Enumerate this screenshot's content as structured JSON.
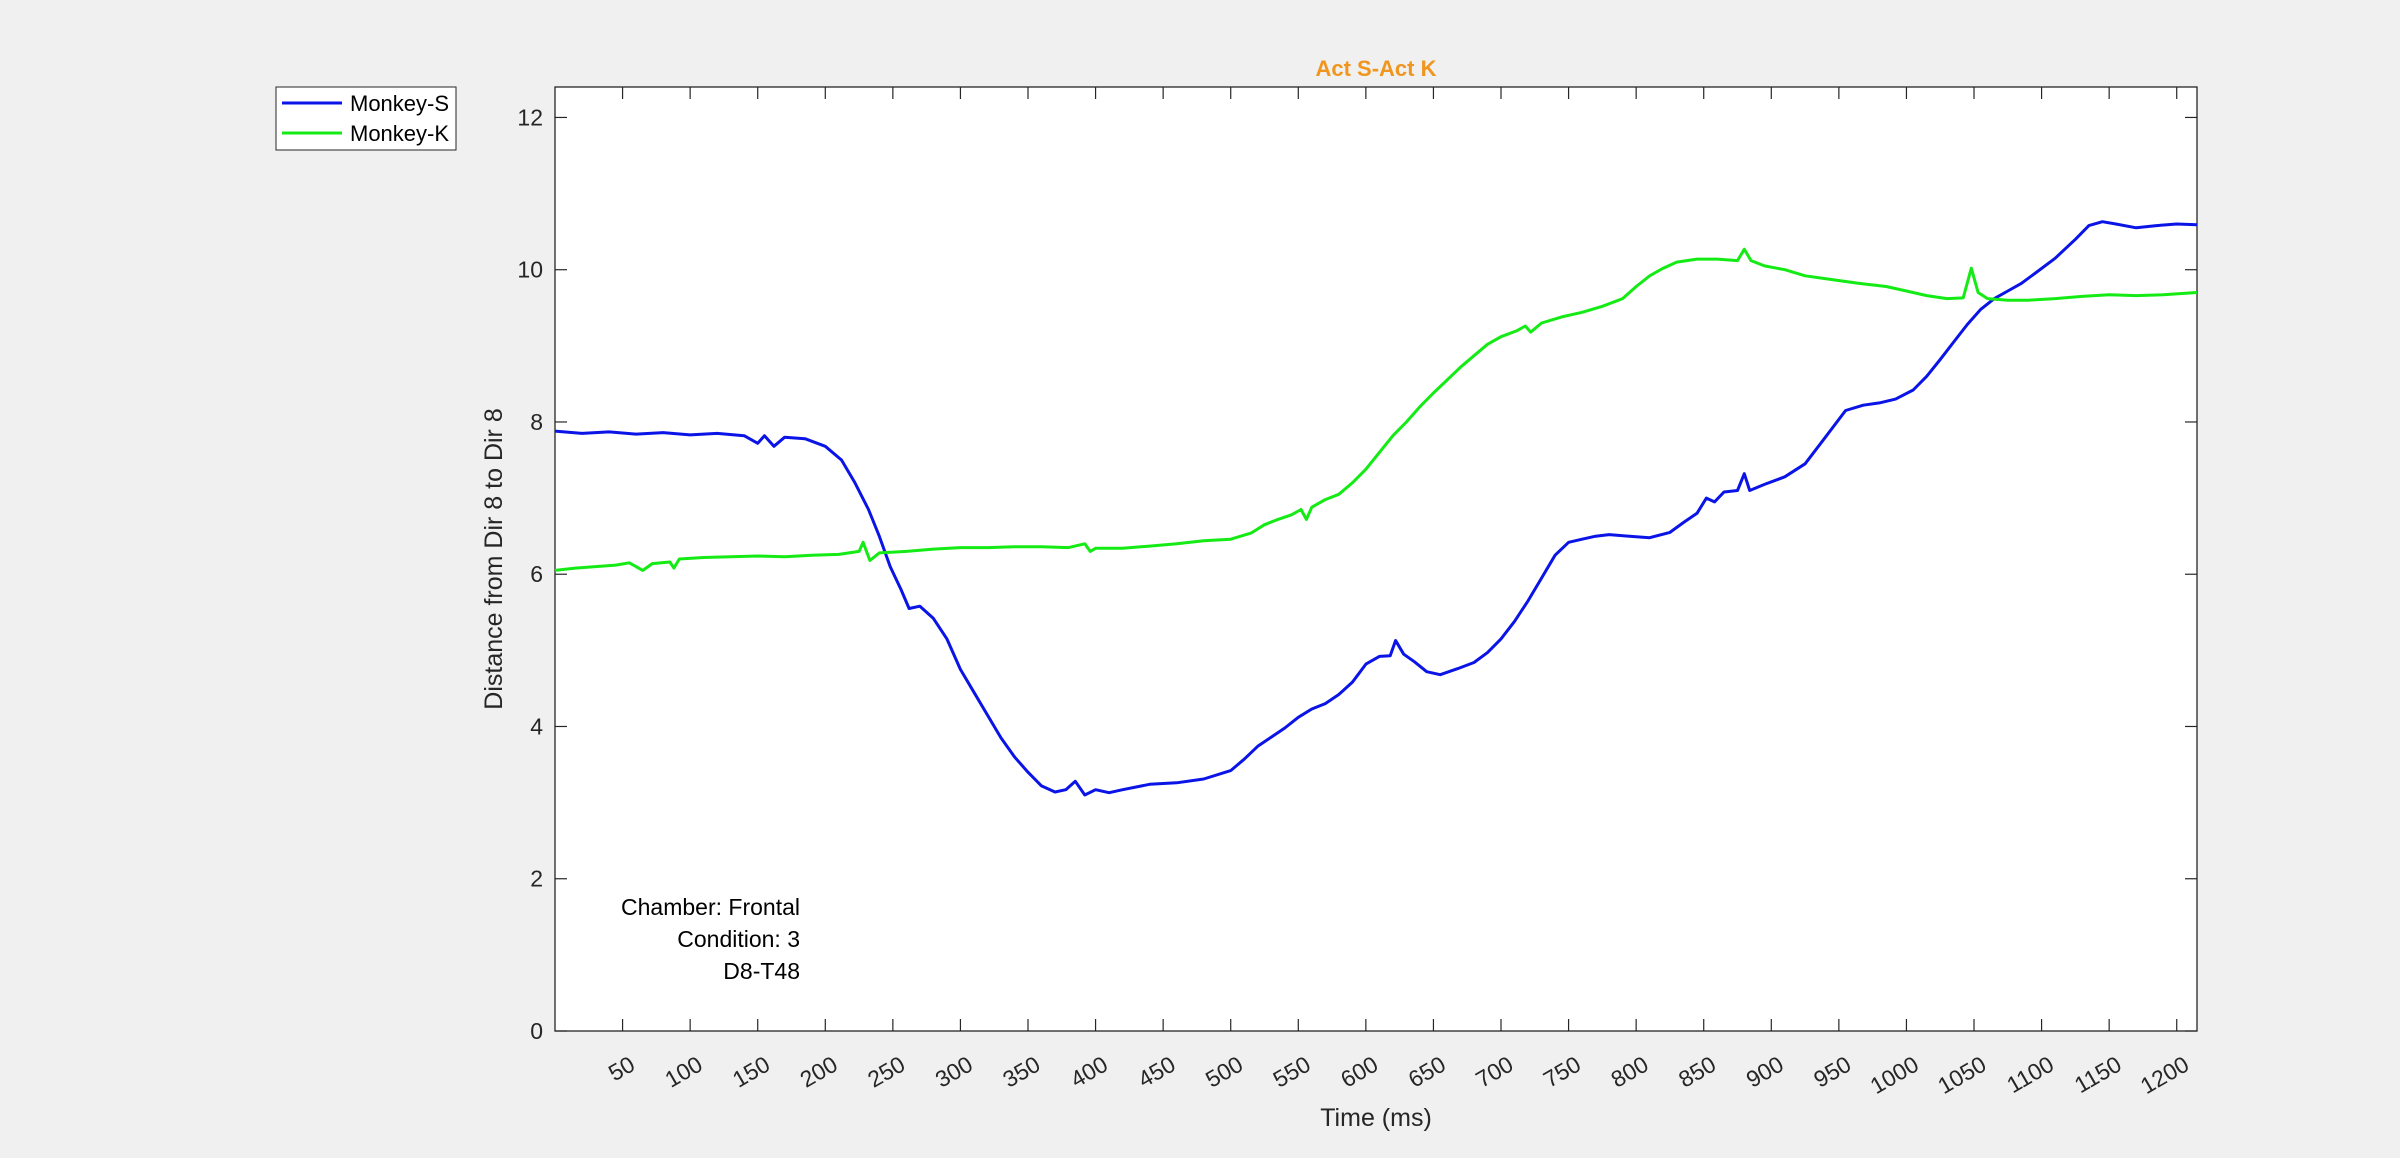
{
  "chart_data": {
    "type": "line",
    "title": "Act S-Act K",
    "title_color": "#f0961e",
    "xlabel": "Time (ms)",
    "ylabel": "Distance from Dir 8 to Dir 8",
    "xlim": [
      0,
      1215
    ],
    "ylim": [
      0,
      12.4
    ],
    "xticks": [
      50,
      100,
      150,
      200,
      250,
      300,
      350,
      400,
      450,
      500,
      550,
      600,
      650,
      700,
      750,
      800,
      850,
      900,
      950,
      1000,
      1050,
      1100,
      1150,
      1200
    ],
    "yticks": [
      0,
      2,
      4,
      6,
      8,
      10,
      12
    ],
    "grid": false,
    "legend_position": "outside-top-left",
    "annotation": [
      "Chamber: Frontal",
      "Condition: 3",
      "D8-T48"
    ],
    "series": [
      {
        "name": "Monkey-S",
        "color": "#0a14e6",
        "points": [
          [
            0,
            7.88
          ],
          [
            20,
            7.85
          ],
          [
            40,
            7.87
          ],
          [
            60,
            7.84
          ],
          [
            80,
            7.86
          ],
          [
            100,
            7.83
          ],
          [
            120,
            7.85
          ],
          [
            140,
            7.82
          ],
          [
            150,
            7.72
          ],
          [
            155,
            7.82
          ],
          [
            162,
            7.68
          ],
          [
            170,
            7.8
          ],
          [
            185,
            7.78
          ],
          [
            200,
            7.68
          ],
          [
            212,
            7.5
          ],
          [
            222,
            7.2
          ],
          [
            232,
            6.85
          ],
          [
            240,
            6.5
          ],
          [
            248,
            6.1
          ],
          [
            256,
            5.8
          ],
          [
            262,
            5.55
          ],
          [
            270,
            5.58
          ],
          [
            280,
            5.42
          ],
          [
            290,
            5.15
          ],
          [
            300,
            4.75
          ],
          [
            310,
            4.45
          ],
          [
            320,
            4.15
          ],
          [
            330,
            3.85
          ],
          [
            340,
            3.6
          ],
          [
            350,
            3.4
          ],
          [
            360,
            3.22
          ],
          [
            370,
            3.14
          ],
          [
            378,
            3.17
          ],
          [
            385,
            3.28
          ],
          [
            392,
            3.1
          ],
          [
            400,
            3.17
          ],
          [
            410,
            3.13
          ],
          [
            420,
            3.17
          ],
          [
            440,
            3.24
          ],
          [
            460,
            3.26
          ],
          [
            480,
            3.31
          ],
          [
            500,
            3.42
          ],
          [
            510,
            3.57
          ],
          [
            520,
            3.74
          ],
          [
            530,
            3.86
          ],
          [
            540,
            3.98
          ],
          [
            550,
            4.12
          ],
          [
            560,
            4.23
          ],
          [
            570,
            4.3
          ],
          [
            580,
            4.42
          ],
          [
            590,
            4.58
          ],
          [
            600,
            4.82
          ],
          [
            610,
            4.92
          ],
          [
            618,
            4.93
          ],
          [
            622,
            5.13
          ],
          [
            628,
            4.95
          ],
          [
            636,
            4.85
          ],
          [
            645,
            4.72
          ],
          [
            655,
            4.68
          ],
          [
            668,
            4.76
          ],
          [
            680,
            4.84
          ],
          [
            690,
            4.97
          ],
          [
            700,
            5.15
          ],
          [
            710,
            5.38
          ],
          [
            720,
            5.65
          ],
          [
            730,
            5.95
          ],
          [
            740,
            6.25
          ],
          [
            750,
            6.42
          ],
          [
            760,
            6.46
          ],
          [
            770,
            6.5
          ],
          [
            780,
            6.52
          ],
          [
            795,
            6.5
          ],
          [
            810,
            6.48
          ],
          [
            825,
            6.55
          ],
          [
            835,
            6.68
          ],
          [
            845,
            6.8
          ],
          [
            852,
            7.0
          ],
          [
            858,
            6.95
          ],
          [
            865,
            7.08
          ],
          [
            875,
            7.1
          ],
          [
            880,
            7.32
          ],
          [
            884,
            7.1
          ],
          [
            895,
            7.18
          ],
          [
            910,
            7.28
          ],
          [
            925,
            7.45
          ],
          [
            940,
            7.8
          ],
          [
            955,
            8.15
          ],
          [
            968,
            8.22
          ],
          [
            980,
            8.25
          ],
          [
            992,
            8.3
          ],
          [
            1005,
            8.42
          ],
          [
            1015,
            8.6
          ],
          [
            1025,
            8.82
          ],
          [
            1035,
            9.05
          ],
          [
            1045,
            9.28
          ],
          [
            1055,
            9.48
          ],
          [
            1065,
            9.62
          ],
          [
            1075,
            9.72
          ],
          [
            1085,
            9.82
          ],
          [
            1095,
            9.95
          ],
          [
            1110,
            10.15
          ],
          [
            1125,
            10.4
          ],
          [
            1135,
            10.58
          ],
          [
            1145,
            10.63
          ],
          [
            1155,
            10.6
          ],
          [
            1170,
            10.55
          ],
          [
            1185,
            10.58
          ],
          [
            1200,
            10.6
          ],
          [
            1215,
            10.59
          ]
        ]
      },
      {
        "name": "Monkey-K",
        "color": "#14eb14",
        "points": [
          [
            0,
            6.05
          ],
          [
            15,
            6.08
          ],
          [
            30,
            6.1
          ],
          [
            45,
            6.12
          ],
          [
            55,
            6.15
          ],
          [
            65,
            6.05
          ],
          [
            72,
            6.14
          ],
          [
            85,
            6.16
          ],
          [
            88,
            6.08
          ],
          [
            92,
            6.2
          ],
          [
            110,
            6.22
          ],
          [
            130,
            6.23
          ],
          [
            150,
            6.24
          ],
          [
            170,
            6.23
          ],
          [
            190,
            6.25
          ],
          [
            210,
            6.26
          ],
          [
            225,
            6.3
          ],
          [
            228,
            6.42
          ],
          [
            233,
            6.18
          ],
          [
            240,
            6.28
          ],
          [
            260,
            6.3
          ],
          [
            280,
            6.33
          ],
          [
            300,
            6.35
          ],
          [
            320,
            6.35
          ],
          [
            340,
            6.36
          ],
          [
            360,
            6.36
          ],
          [
            380,
            6.35
          ],
          [
            392,
            6.4
          ],
          [
            396,
            6.3
          ],
          [
            400,
            6.34
          ],
          [
            420,
            6.34
          ],
          [
            440,
            6.37
          ],
          [
            460,
            6.4
          ],
          [
            480,
            6.44
          ],
          [
            500,
            6.46
          ],
          [
            515,
            6.54
          ],
          [
            525,
            6.65
          ],
          [
            535,
            6.72
          ],
          [
            545,
            6.78
          ],
          [
            552,
            6.85
          ],
          [
            556,
            6.72
          ],
          [
            560,
            6.88
          ],
          [
            570,
            6.98
          ],
          [
            580,
            7.05
          ],
          [
            590,
            7.2
          ],
          [
            600,
            7.38
          ],
          [
            610,
            7.6
          ],
          [
            620,
            7.82
          ],
          [
            630,
            8.0
          ],
          [
            640,
            8.2
          ],
          [
            650,
            8.38
          ],
          [
            660,
            8.55
          ],
          [
            670,
            8.72
          ],
          [
            680,
            8.87
          ],
          [
            690,
            9.02
          ],
          [
            700,
            9.12
          ],
          [
            712,
            9.2
          ],
          [
            718,
            9.26
          ],
          [
            722,
            9.18
          ],
          [
            730,
            9.3
          ],
          [
            745,
            9.38
          ],
          [
            760,
            9.44
          ],
          [
            775,
            9.52
          ],
          [
            790,
            9.62
          ],
          [
            800,
            9.78
          ],
          [
            810,
            9.92
          ],
          [
            820,
            10.02
          ],
          [
            830,
            10.1
          ],
          [
            845,
            10.14
          ],
          [
            860,
            10.14
          ],
          [
            875,
            10.12
          ],
          [
            880,
            10.27
          ],
          [
            885,
            10.12
          ],
          [
            895,
            10.05
          ],
          [
            910,
            10.0
          ],
          [
            925,
            9.92
          ],
          [
            945,
            9.87
          ],
          [
            965,
            9.82
          ],
          [
            985,
            9.78
          ],
          [
            1000,
            9.72
          ],
          [
            1015,
            9.66
          ],
          [
            1030,
            9.62
          ],
          [
            1042,
            9.63
          ],
          [
            1048,
            10.02
          ],
          [
            1053,
            9.7
          ],
          [
            1060,
            9.62
          ],
          [
            1075,
            9.6
          ],
          [
            1090,
            9.6
          ],
          [
            1110,
            9.62
          ],
          [
            1130,
            9.65
          ],
          [
            1150,
            9.67
          ],
          [
            1170,
            9.66
          ],
          [
            1190,
            9.67
          ],
          [
            1215,
            9.7
          ]
        ]
      }
    ]
  }
}
